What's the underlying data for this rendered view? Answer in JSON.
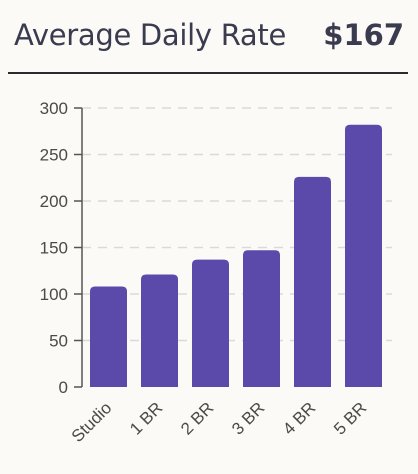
{
  "header": {
    "title": "Average Daily Rate",
    "value": "$167"
  },
  "colors": {
    "bar": "#5b4aaa",
    "grid": "#d9d9d9",
    "axis": "#555555",
    "text": "#3a3b4f"
  },
  "chart_data": {
    "type": "bar",
    "categories": [
      "Studio",
      "1 BR",
      "2 BR",
      "3 BR",
      "4 BR",
      "5 BR"
    ],
    "values": [
      108,
      121,
      137,
      147,
      226,
      282
    ],
    "yticks": [
      0,
      50,
      100,
      150,
      200,
      250,
      300
    ],
    "ylim": [
      0,
      300
    ],
    "grid": true,
    "grid_style": "dashed",
    "xlabel": "",
    "ylabel": ""
  }
}
